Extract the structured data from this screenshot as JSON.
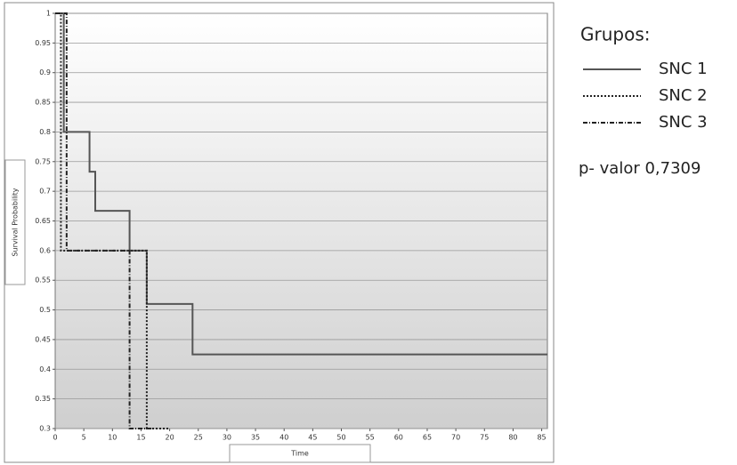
{
  "chart_data": {
    "type": "step",
    "x_label": "Time",
    "y_label": "Survival Probability",
    "legend_title": "Grupos:",
    "annotation": "p- valor 0,7309",
    "xlim": [
      0,
      86
    ],
    "xticks": [
      0,
      5,
      10,
      15,
      20,
      25,
      30,
      35,
      40,
      45,
      50,
      55,
      60,
      65,
      70,
      75,
      80,
      85
    ],
    "ylim": [
      0.3,
      1
    ],
    "yticks": [
      0.3,
      0.35,
      0.4,
      0.45,
      0.5,
      0.55,
      0.6,
      0.65,
      0.7,
      0.75,
      0.8,
      0.85,
      0.9,
      0.95,
      1
    ],
    "grid": true,
    "series": [
      {
        "name": "SNC 1",
        "color": "#555555",
        "style": "solid",
        "x": [
          0,
          1.5,
          6,
          7,
          13,
          16,
          24,
          86
        ],
        "values": [
          1,
          0.8,
          0.733,
          0.667,
          0.6,
          0.51,
          0.425,
          0.425
        ]
      },
      {
        "name": "SNC 2",
        "color": "#222222",
        "style": "dotted",
        "x": [
          0,
          1,
          16,
          20
        ],
        "values": [
          1,
          0.6,
          0.3,
          0.3
        ]
      },
      {
        "name": "SNC 3",
        "color": "#222222",
        "style": "dashdot",
        "x": [
          0,
          2,
          13,
          17
        ],
        "values": [
          1,
          0.6,
          0.3,
          0.3
        ]
      }
    ]
  }
}
